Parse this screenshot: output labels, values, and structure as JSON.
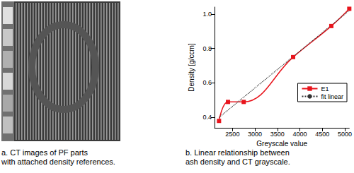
{
  "chart_data": {
    "type": "line",
    "x_label": "Greyscale value",
    "y_label": "Density [g/ccm]",
    "xlim": [
      2100,
      5100
    ],
    "xticks": [
      2500,
      3000,
      3500,
      4000,
      4500,
      5000
    ],
    "ylim": [
      0.34,
      1.04
    ],
    "yticks": [
      0.4,
      0.6,
      0.8,
      {
        "value": 1,
        "label": "1.0"
      }
    ],
    "grid": false,
    "legend": "lower right",
    "series": [
      {
        "name": "E1",
        "color": "#e8141c",
        "marker": "square",
        "line_style": "solid",
        "x": [
          2200,
          2400,
          2750,
          3850,
          4700,
          5100
        ],
        "values": [
          0.38,
          0.49,
          0.49,
          0.75,
          0.93,
          1.03
        ]
      },
      {
        "name": "fit linear",
        "color": "#333333",
        "marker": "none",
        "line_style": "dotted",
        "x": [
          2200,
          5100
        ],
        "values": [
          0.4,
          1.02
        ]
      }
    ]
  },
  "captions": {
    "a": [
      "a. CT images of PF parts",
      "with attached density references."
    ],
    "b": [
      "b. Linear relationship between",
      "ash density and CT grayscale."
    ]
  }
}
